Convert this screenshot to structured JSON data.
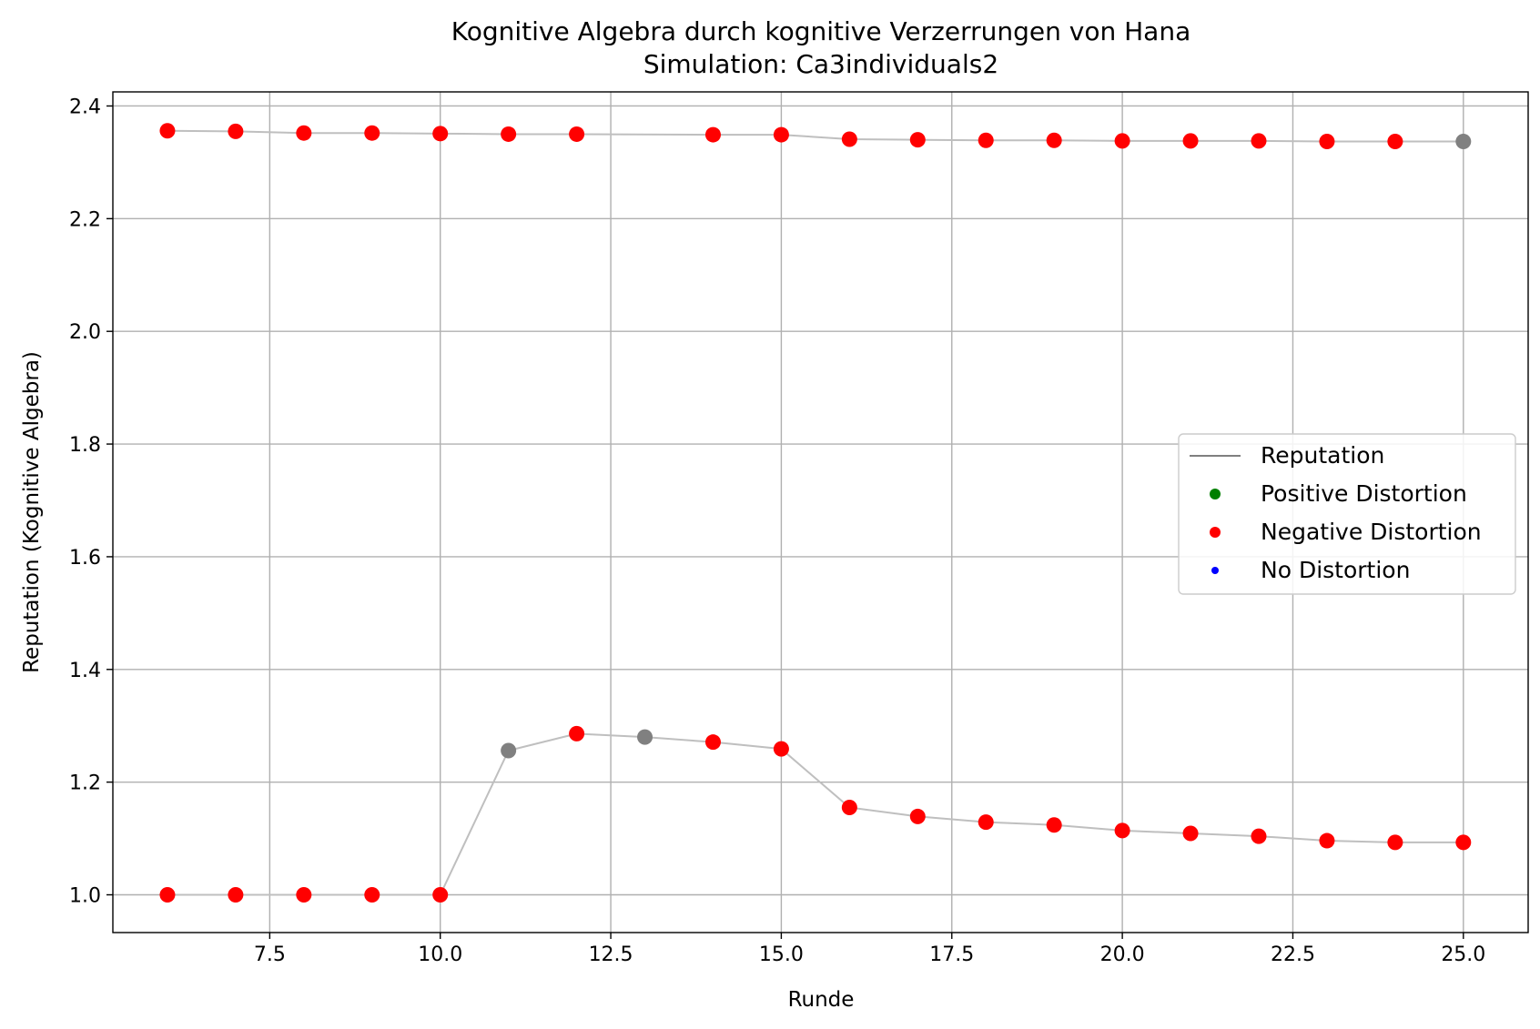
{
  "chart_data": {
    "type": "line",
    "title": "Kognitive Algebra durch kognitive Verzerrungen von Hana",
    "subtitle": "Simulation: Ca3individuals2",
    "xlabel": "Runde",
    "ylabel": "Reputation (Kognitive Algebra)",
    "xlim": [
      5.2,
      25.95
    ],
    "ylim": [
      0.933,
      2.425
    ],
    "xticks": [
      "7.5",
      "10.0",
      "12.5",
      "15.0",
      "17.5",
      "20.0",
      "22.5",
      "25.0"
    ],
    "xtick_values": [
      7.5,
      10.0,
      12.5,
      15.0,
      17.5,
      20.0,
      22.5,
      25.0
    ],
    "yticks": [
      "1.0",
      "1.2",
      "1.4",
      "1.6",
      "1.8",
      "2.0",
      "2.2",
      "2.4"
    ],
    "ytick_values": [
      1.0,
      1.2,
      1.4,
      1.6,
      1.8,
      2.0,
      2.2,
      2.4
    ],
    "grid": true,
    "legend": {
      "placement": "center-right",
      "entries": [
        {
          "label": "Reputation",
          "marker": "line",
          "color": "#808080"
        },
        {
          "label": "Positive Distortion",
          "marker": "dot",
          "color": "#008000"
        },
        {
          "label": "Negative Distortion",
          "marker": "dot",
          "color": "#ff0000"
        },
        {
          "label": "No Distortion",
          "marker": "dot-small",
          "color": "#0000ff"
        }
      ]
    },
    "colors": {
      "negative": "#ff0000",
      "positive": "#008000",
      "none": "#0000ff",
      "unmarked": "#808080",
      "line": "#bfbfbf"
    },
    "series": [
      {
        "x": [
          6,
          7,
          8,
          9,
          10,
          11,
          12,
          14,
          15,
          16,
          17,
          18,
          19,
          20,
          21,
          22,
          23,
          24,
          25
        ],
        "y": [
          2.356,
          2.355,
          2.352,
          2.352,
          2.351,
          2.35,
          2.35,
          2.349,
          2.349,
          2.341,
          2.34,
          2.339,
          2.339,
          2.338,
          2.338,
          2.338,
          2.337,
          2.337,
          2.337
        ],
        "point_types": [
          "negative",
          "negative",
          "negative",
          "negative",
          "negative",
          "negative",
          "negative",
          "negative",
          "negative",
          "negative",
          "negative",
          "negative",
          "negative",
          "negative",
          "negative",
          "negative",
          "negative",
          "negative",
          "unmarked"
        ]
      },
      {
        "x": [
          6,
          7,
          8,
          9,
          10,
          11,
          12,
          13,
          14,
          15,
          16,
          17,
          18,
          19,
          20,
          21,
          22,
          23,
          24,
          25
        ],
        "y": [
          1.0,
          1.0,
          1.0,
          1.0,
          1.0,
          1.256,
          1.286,
          1.28,
          1.271,
          1.259,
          1.155,
          1.139,
          1.129,
          1.124,
          1.114,
          1.109,
          1.104,
          1.096,
          1.093,
          1.093
        ],
        "point_types": [
          "negative",
          "negative",
          "negative",
          "negative",
          "negative",
          "unmarked",
          "negative",
          "unmarked",
          "negative",
          "negative",
          "negative",
          "negative",
          "negative",
          "negative",
          "negative",
          "negative",
          "negative",
          "negative",
          "negative",
          "negative"
        ]
      }
    ]
  }
}
